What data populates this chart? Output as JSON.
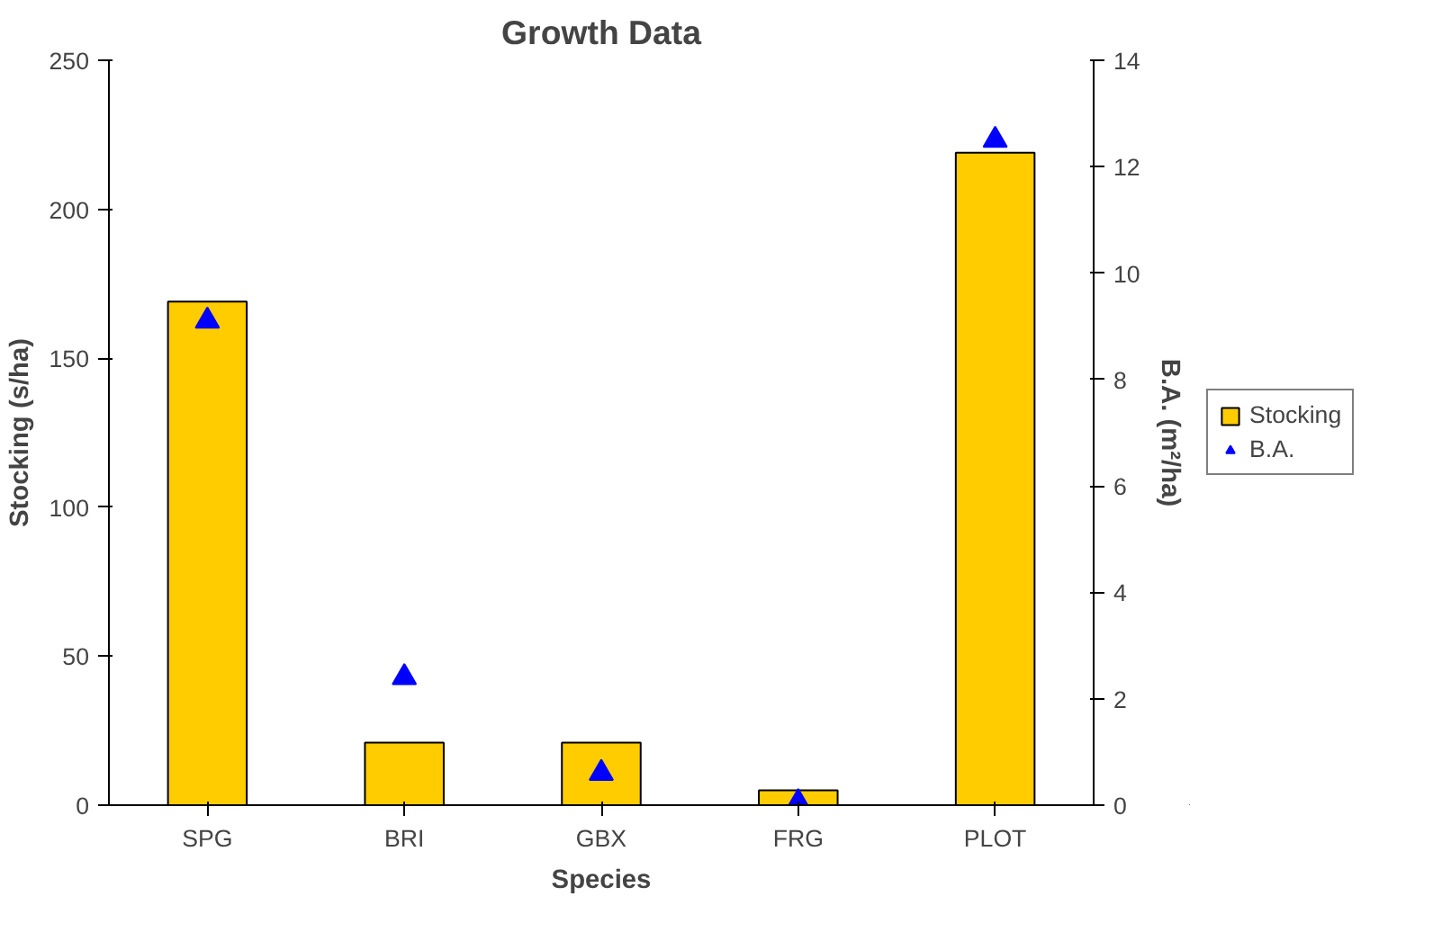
{
  "chart_data": {
    "type": "bar",
    "title": "Growth Data",
    "xlabel": "Species",
    "ylabel": "Stocking (s/ha)",
    "y2label": "B.A. (m²/ha)",
    "categories": [
      "SPG",
      "BRI",
      "GBX",
      "FRG",
      "PLOT"
    ],
    "series": [
      {
        "name": "Stocking",
        "color": "#ffcc00",
        "values": [
          169,
          21,
          21,
          5,
          219
        ]
      },
      {
        "name": "B.A.",
        "type": "scatter",
        "axis": "y2",
        "color": "#0000ff",
        "values": [
          9.1,
          2.4,
          0.6,
          0.05,
          12.5
        ]
      }
    ],
    "marker": "triangle",
    "ylim": [
      0,
      250
    ],
    "yticks": [
      0,
      50,
      100,
      150,
      200,
      250
    ],
    "y2lim": [
      0,
      14
    ],
    "y2ticks": [
      0,
      2,
      4,
      6,
      8,
      10,
      12,
      14
    ],
    "grid": false,
    "legend": "right"
  }
}
